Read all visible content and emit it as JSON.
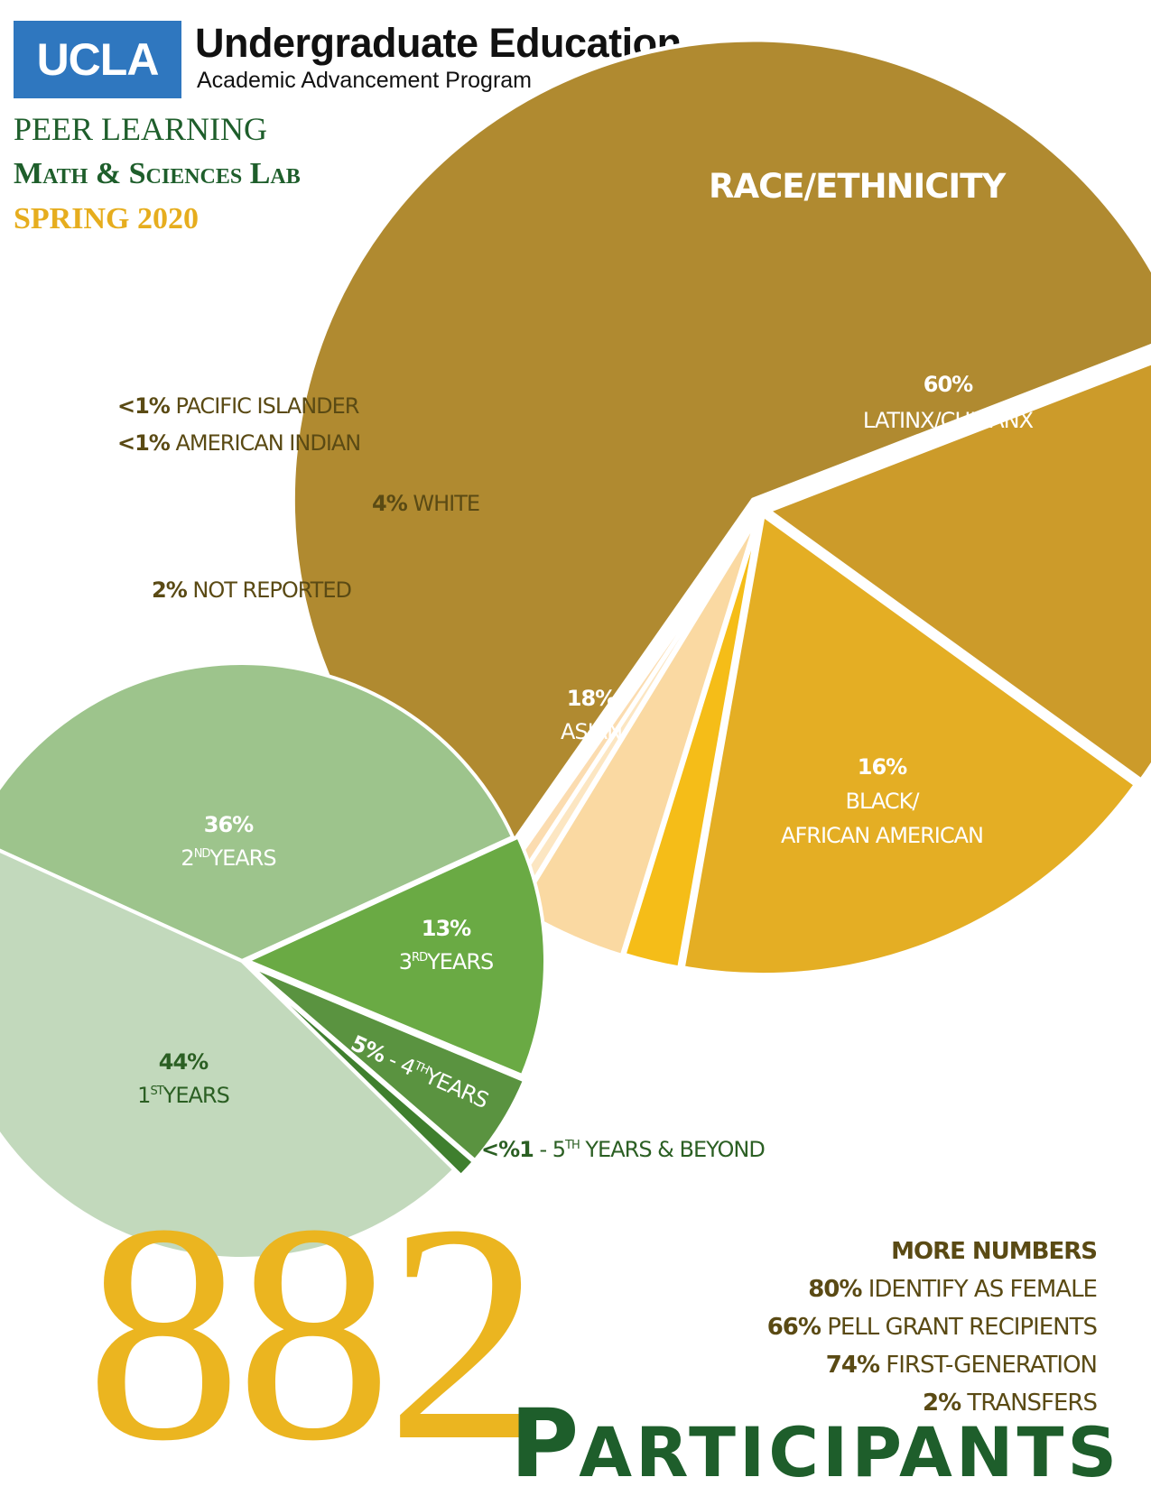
{
  "header": {
    "logo_text": "UCLA",
    "title": "Undergraduate Education",
    "subtitle": "Academic Advancement Program"
  },
  "program": {
    "line1": "PEER LEARNING",
    "line2": "Math & Sciences Lab",
    "line3": "SPRING 2020"
  },
  "chart_data": [
    {
      "type": "pie",
      "title": "RACE/ETHNICITY",
      "slices": [
        {
          "label": "LATINX/CHICANX",
          "pct_text": "60%",
          "value": 60,
          "color": "#b08a30"
        },
        {
          "label": "BLACK/ AFRICAN AMERICAN",
          "pct_text": "16%",
          "value": 16,
          "color": "#cc9b2a"
        },
        {
          "label": "ASIAN",
          "pct_text": "18%",
          "value": 18,
          "color": "#e4ae24"
        },
        {
          "label": "NOT REPORTED",
          "pct_text": "2%",
          "value": 2,
          "color": "#f5bd18"
        },
        {
          "label": "WHITE",
          "pct_text": "4%",
          "value": 4,
          "color": "#fad9a2"
        },
        {
          "label": "AMERICAN INDIAN",
          "pct_text": "<1%",
          "value": 0.5,
          "color": "#fce6c2"
        },
        {
          "label": "PACIFIC ISLANDER",
          "pct_text": "<1%",
          "value": 0.5,
          "color": "#fbdcb0"
        }
      ]
    },
    {
      "type": "pie",
      "title": "",
      "slices": [
        {
          "label": "2ND YEARS",
          "pct_text": "36%",
          "value": 36,
          "color": "#9dc48c"
        },
        {
          "label": "3RD YEARS",
          "pct_text": "13%",
          "value": 13,
          "color": "#6aaa44"
        },
        {
          "label": "4TH YEARS",
          "pct_text": "5%",
          "value": 5,
          "color": "#5a9340"
        },
        {
          "label": "5TH YEARS & BEYOND",
          "pct_text": "<%1",
          "value": 1,
          "color": "#3f7f2e"
        },
        {
          "label": "1ST YEARS",
          "pct_text": "44%",
          "value": 44,
          "color": "#c2d9bc"
        }
      ]
    }
  ],
  "labels": {
    "race_title": "RACE/ETHNICITY",
    "latinx_pct": "60%",
    "latinx": "LATINX/CHICANX",
    "pacific_pct": "<1%",
    "pacific": "PACIFIC ISLANDER",
    "amind_pct": "<1%",
    "amind": "AMERICAN INDIAN",
    "white_pct": "4%",
    "white": "WHITE",
    "notrep_pct": "2%",
    "notrep": "NOT REPORTED",
    "asian_pct": "18%",
    "asian": "ASIAN",
    "black_pct": "16%",
    "black1": "BLACK/",
    "black2": "AFRICAN AMERICAN",
    "y2_pct": "36%",
    "y2_num": "2",
    "y2_sup": "ND",
    "y2_txt": "YEARS",
    "y3_pct": "13%",
    "y3_num": "3",
    "y3_sup": "RD",
    "y3_txt": "YEARS",
    "y4_pct": "5%",
    "y4_mid": " - 4",
    "y4_sup": "TH",
    "y4_txt": "YEARS",
    "y1_pct": "44%",
    "y1_num": "1",
    "y1_sup": "ST",
    "y1_txt": "YEARS",
    "y5_pct": "<%1",
    "y5_mid": " - 5",
    "y5_sup": "TH",
    "y5_txt": " YEARS & BEYOND"
  },
  "participants": {
    "count": "882",
    "cap": "P",
    "rest": "ARTICIPANTS"
  },
  "more_numbers": {
    "heading": "MORE NUMBERS",
    "items": [
      {
        "pct": "80%",
        "text": "IDENTIFY AS FEMALE"
      },
      {
        "pct": "66%",
        "text": "PELL GRANT RECIPIENTS"
      },
      {
        "pct": "74%",
        "text": "FIRST-GENERATION"
      },
      {
        "pct": "2%",
        "text": "TRANSFERS"
      }
    ]
  }
}
